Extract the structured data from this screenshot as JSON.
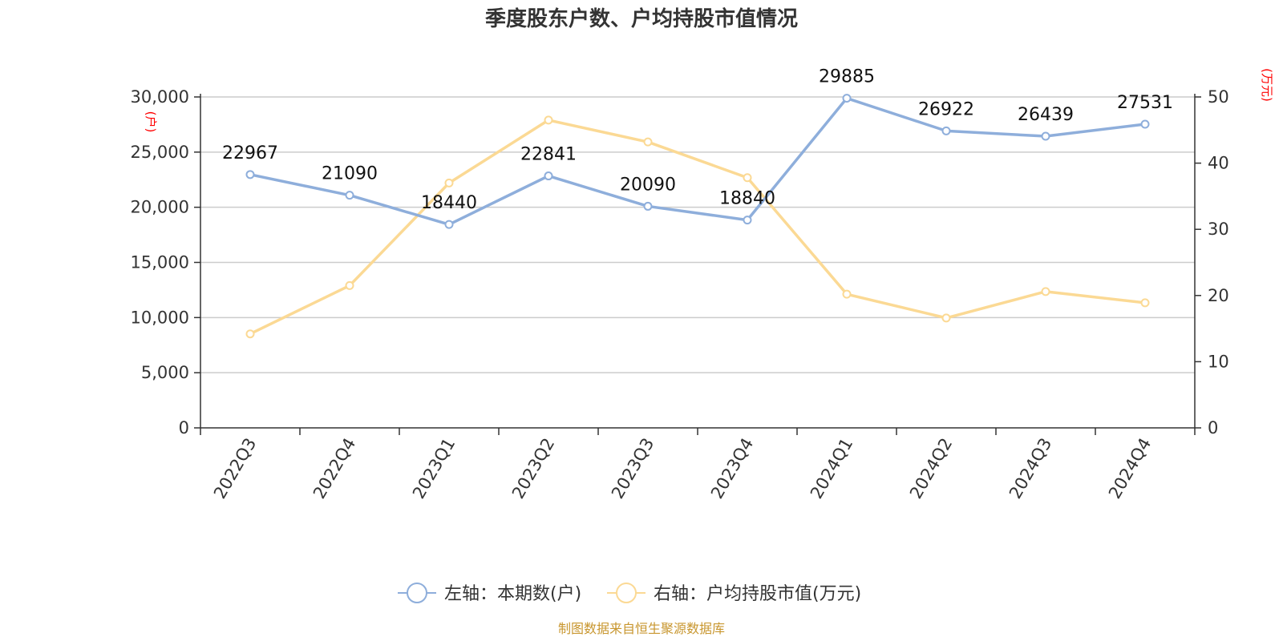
{
  "chart_data": {
    "type": "line",
    "title": "季度股东户数、户均持股市值情况",
    "categories": [
      "2022Q3",
      "2022Q4",
      "2023Q1",
      "2023Q2",
      "2023Q3",
      "2023Q4",
      "2024Q1",
      "2024Q2",
      "2024Q3",
      "2024Q4"
    ],
    "series": [
      {
        "name": "左轴：本期数(户)",
        "axis": "left",
        "color": "#8eaedb",
        "values": [
          22967,
          21090,
          18440,
          22841,
          20090,
          18840,
          29885,
          26922,
          26439,
          27531
        ],
        "labels": [
          "22967",
          "21090",
          "18440",
          "22841",
          "20090",
          "18840",
          "29885",
          "26922",
          "26439",
          "27531"
        ]
      },
      {
        "name": "右轴：户均持股市值(万元)",
        "axis": "right",
        "color": "#fbd994",
        "values": [
          14.2,
          21.5,
          37.0,
          46.5,
          43.2,
          37.8,
          20.2,
          16.6,
          20.6,
          18.9
        ]
      }
    ],
    "y_left": {
      "min": 0,
      "max": 30000,
      "ticks": [
        "0",
        "5,000",
        "10,000",
        "15,000",
        "20,000",
        "25,000",
        "30,000"
      ],
      "unit": "(户)"
    },
    "y_right": {
      "min": 0,
      "max": 50,
      "ticks": [
        "0",
        "10",
        "20",
        "30",
        "40",
        "50"
      ],
      "unit": "(万元)"
    },
    "grid": true,
    "legend": "bottom",
    "source": "制图数据来自恒生聚源数据库",
    "source_color": "#c8962e"
  }
}
